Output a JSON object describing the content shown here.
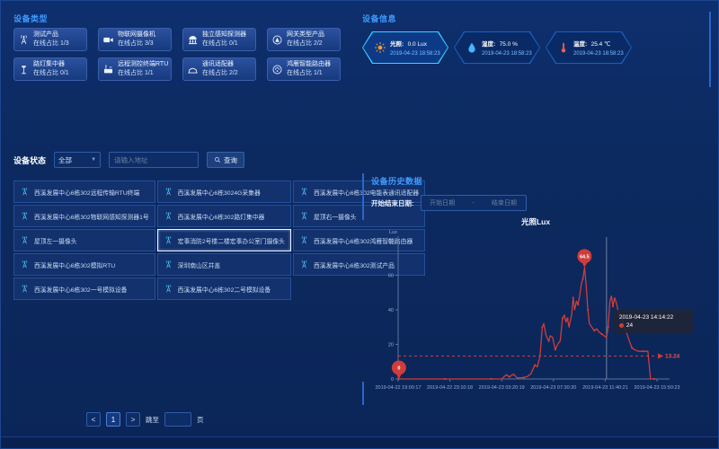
{
  "device_types": {
    "title": "设备类型",
    "online_label": "在线占比",
    "cards": [
      {
        "icon": "antenna-icon",
        "name": "测试产品",
        "ratio": "1/3"
      },
      {
        "icon": "camera-icon",
        "name": "物联网摄像机",
        "ratio": "3/3"
      },
      {
        "icon": "detector-icon",
        "name": "独立感知探测器",
        "ratio": "0/1"
      },
      {
        "icon": "gateway-icon",
        "name": "网关类型产品",
        "ratio": "2/2"
      },
      {
        "icon": "streetlamp-icon",
        "name": "路灯集中器",
        "ratio": "0/1"
      },
      {
        "icon": "rtu-icon",
        "name": "远程测控终端RTU",
        "ratio": "1/1"
      },
      {
        "icon": "adapter-icon",
        "name": "通讯适配器",
        "ratio": "2/2"
      },
      {
        "icon": "router-icon",
        "name": "鸿雁智能路由器",
        "ratio": "1/1"
      }
    ]
  },
  "device_info": {
    "title": "设备信息",
    "badges": [
      {
        "icon": "sun-icon",
        "label": "光照:",
        "value": "0.0 Lux",
        "time": "2019-04-23 18:58:23",
        "selected": true
      },
      {
        "icon": "humidity-icon",
        "label": "湿度:",
        "value": "75.0 %",
        "time": "2019-04-23 18:58:23",
        "selected": false
      },
      {
        "icon": "thermometer-icon",
        "label": "温度:",
        "value": "25.4 ℃",
        "time": "2019-04-23 18:58:23",
        "selected": false
      }
    ]
  },
  "device_status": {
    "label": "设备状态",
    "filter_value": "全部",
    "search_placeholder": "请输入地址",
    "search_label": "查询",
    "devices": [
      {
        "name": "西溪发展中心6栋302远程传输RTU终端",
        "selected": false
      },
      {
        "name": "西溪发展中心6栋3024G采集器",
        "selected": false
      },
      {
        "name": "西溪发展中心6栋302电能表通讯适配器",
        "selected": false
      },
      {
        "name": "西溪发展中心6栋302物联网感知探测器1号",
        "selected": false
      },
      {
        "name": "西溪发展中心6栋302路灯集中器",
        "selected": false
      },
      {
        "name": "屋顶右一摄像头",
        "selected": false
      },
      {
        "name": "屋顶左一摄像头",
        "selected": false
      },
      {
        "name": "宏事消防2号楼二楼宏事办公室门摄像头",
        "selected": true
      },
      {
        "name": "西溪发展中心6栋302鸿雁智能路由器",
        "selected": false
      },
      {
        "name": "西溪发展中心6栋302模拟RTU",
        "selected": false
      },
      {
        "name": "深圳南山区井盖",
        "selected": false
      },
      {
        "name": "西溪发展中心6栋302测试产品",
        "selected": false
      },
      {
        "name": "西溪发展中心6栋302一号模拟设备",
        "selected": false
      },
      {
        "name": "西溪发展中心6栋302二号模拟设备",
        "selected": false
      }
    ]
  },
  "history": {
    "title": "设备历史数据",
    "date_label": "开始结束日期:",
    "start_placeholder": "开始日期",
    "separator": "-",
    "end_placeholder": "结束日期"
  },
  "pagination": {
    "prev": "<",
    "page": "1",
    "next": ">",
    "jump_label": "跳至",
    "unit_label": "页"
  },
  "chart_data": {
    "type": "line",
    "title": "光照Lux",
    "ylabel": "Lux",
    "ylim": [
      0,
      80
    ],
    "yticks": [
      0,
      20,
      40,
      60,
      80
    ],
    "xticklabels": [
      "2019-04-22 19:00:17",
      "2019-04-22 23:10:18",
      "2019-04-23 03:20:19",
      "2019-04-23 07:30:20",
      "2019-04-23 11:40:21",
      "2019-04-23 15:50:23"
    ],
    "grid": false,
    "legend_position": "none",
    "series": [
      {
        "name": "光照",
        "color": "#cf3d3a",
        "points": [
          [
            0.3,
            0
          ],
          [
            6,
            0
          ],
          [
            12,
            0
          ],
          [
            18,
            0
          ],
          [
            24,
            0
          ],
          [
            30,
            0
          ],
          [
            36,
            0
          ],
          [
            40,
            0
          ],
          [
            41.8,
            2.5
          ],
          [
            43,
            1.2
          ],
          [
            44.5,
            2.8
          ],
          [
            46,
            0.6
          ],
          [
            48.5,
            0.8
          ],
          [
            50,
            1.5
          ],
          [
            51.3,
            3
          ],
          [
            52.8,
            8
          ],
          [
            53.8,
            7
          ],
          [
            54.8,
            13
          ],
          [
            55.7,
            30
          ],
          [
            56.3,
            32
          ],
          [
            57.2,
            25
          ],
          [
            58.2,
            22
          ],
          [
            58.8,
            25
          ],
          [
            59.7,
            24
          ],
          [
            60.7,
            17
          ],
          [
            61.6,
            20
          ],
          [
            62.6,
            22
          ],
          [
            63.5,
            35
          ],
          [
            64.2,
            37
          ],
          [
            64.8,
            33
          ],
          [
            65.4,
            35
          ],
          [
            66,
            30
          ],
          [
            67,
            37
          ],
          [
            67.6,
            47
          ],
          [
            68.2,
            40
          ],
          [
            68.9,
            45
          ],
          [
            69.5,
            43
          ],
          [
            70.1,
            48
          ],
          [
            70.8,
            55
          ],
          [
            71.4,
            58
          ],
          [
            72,
            64.5
          ],
          [
            72.6,
            55
          ],
          [
            73.3,
            40
          ],
          [
            73.9,
            32
          ],
          [
            74.8,
            30
          ],
          [
            75.8,
            28
          ],
          [
            76.7,
            29
          ],
          [
            77.7,
            27
          ],
          [
            78.6,
            26
          ],
          [
            79.6,
            25
          ],
          [
            80.5,
            24
          ],
          [
            81.1,
            30
          ],
          [
            81.8,
            45
          ],
          [
            82.4,
            48
          ],
          [
            83,
            42
          ],
          [
            83.6,
            47
          ],
          [
            84.3,
            44
          ],
          [
            85.2,
            38
          ],
          [
            85.8,
            36
          ],
          [
            86.5,
            35
          ],
          [
            87.4,
            30
          ],
          [
            88.4,
            26
          ],
          [
            89.3,
            22
          ],
          [
            90.3,
            18
          ],
          [
            91.2,
            17
          ],
          [
            92.8,
            16
          ],
          [
            94.7,
            16
          ],
          [
            96.5,
            16
          ],
          [
            97.5,
            0
          ],
          [
            99,
            0
          ]
        ]
      }
    ],
    "max_marker": {
      "t": 72,
      "value": 64.5,
      "label": "64.5"
    },
    "min_marker": {
      "t": 0.3,
      "value": 0,
      "label": "0"
    },
    "avg_line": {
      "value": 13.24,
      "label": "13.24"
    },
    "tooltip": {
      "t": 80.5,
      "time": "2019-04-23 14:14:22",
      "value": "24"
    }
  }
}
